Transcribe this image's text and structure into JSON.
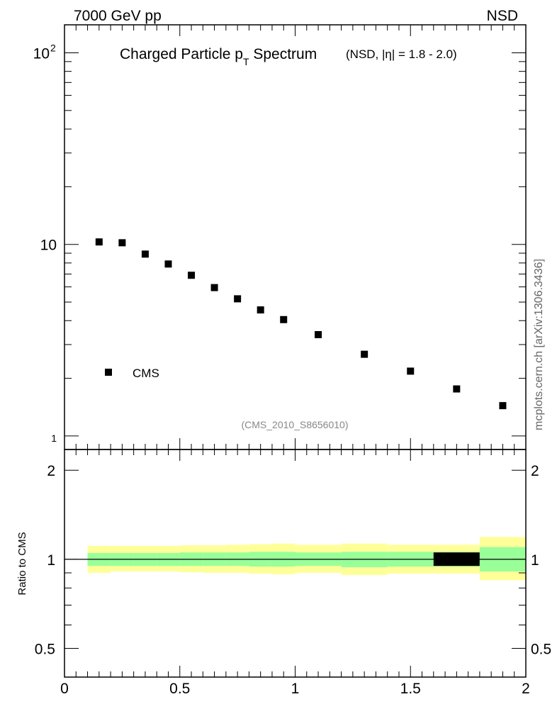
{
  "header": {
    "left": "7000 GeV pp",
    "right": "NSD"
  },
  "watermark": "mcplots.cern.ch [arXiv:1306.3436]",
  "analysis_id": "(CMS_2010_S8656010)",
  "chart_data": [
    {
      "type": "scatter",
      "title_main": "Charged Particle p",
      "title_sub": "T",
      "title_tail": " Spectrum",
      "title_detail": "(NSD, |η| = 1.8 - 2.0)",
      "xlim": [
        0,
        2
      ],
      "ylim": [
        0.85,
        140
      ],
      "yscale": "log",
      "y_ticks": [
        {
          "value": 1,
          "label": "1"
        },
        {
          "value": 10,
          "label": "10"
        },
        {
          "value": 100,
          "label": "10",
          "sup": "2"
        }
      ],
      "legend": {
        "label": "CMS",
        "position": "bottom-left"
      },
      "series": [
        {
          "name": "CMS",
          "marker": "square",
          "color": "#000000",
          "x": [
            0.15,
            0.25,
            0.35,
            0.45,
            0.55,
            0.65,
            0.75,
            0.85,
            0.95,
            1.1,
            1.3,
            1.5,
            1.7,
            1.9
          ],
          "y": [
            10.3,
            10.2,
            8.9,
            7.9,
            6.9,
            5.95,
            5.2,
            4.55,
            4.05,
            3.38,
            2.67,
            2.18,
            1.76,
            1.44
          ]
        }
      ]
    },
    {
      "type": "area",
      "ylabel": "Ratio to CMS",
      "xlim": [
        0,
        2
      ],
      "ylim": [
        0.4,
        2.35
      ],
      "yscale": "log",
      "x_ticks": [
        {
          "value": 0,
          "label": "0"
        },
        {
          "value": 0.5,
          "label": "0.5"
        },
        {
          "value": 1,
          "label": "1"
        },
        {
          "value": 1.5,
          "label": "1.5"
        },
        {
          "value": 2,
          "label": "2"
        }
      ],
      "y_ticks": [
        {
          "value": 0.5,
          "label": "0.5"
        },
        {
          "value": 1,
          "label": "1"
        },
        {
          "value": 2,
          "label": "2"
        }
      ],
      "bands": {
        "outer_color": "#ffff99",
        "inner_color": "#99ff99",
        "reference_color": "#000000",
        "bins": [
          {
            "x0": 0.1,
            "x1": 0.2,
            "inner": [
              0.95,
              1.05
            ],
            "outer": [
              0.9,
              1.11
            ]
          },
          {
            "x0": 0.2,
            "x1": 0.3,
            "inner": [
              0.95,
              1.05
            ],
            "outer": [
              0.91,
              1.11
            ]
          },
          {
            "x0": 0.3,
            "x1": 0.4,
            "inner": [
              0.95,
              1.05
            ],
            "outer": [
              0.91,
              1.11
            ]
          },
          {
            "x0": 0.4,
            "x1": 0.5,
            "inner": [
              0.95,
              1.05
            ],
            "outer": [
              0.91,
              1.11
            ]
          },
          {
            "x0": 0.5,
            "x1": 0.6,
            "inner": [
              0.95,
              1.055
            ],
            "outer": [
              0.905,
              1.115
            ]
          },
          {
            "x0": 0.6,
            "x1": 0.7,
            "inner": [
              0.95,
              1.055
            ],
            "outer": [
              0.9,
              1.115
            ]
          },
          {
            "x0": 0.7,
            "x1": 0.8,
            "inner": [
              0.95,
              1.055
            ],
            "outer": [
              0.9,
              1.12
            ]
          },
          {
            "x0": 0.8,
            "x1": 0.9,
            "inner": [
              0.945,
              1.06
            ],
            "outer": [
              0.895,
              1.125
            ]
          },
          {
            "x0": 0.9,
            "x1": 1.0,
            "inner": [
              0.945,
              1.06
            ],
            "outer": [
              0.89,
              1.13
            ]
          },
          {
            "x0": 1.0,
            "x1": 1.2,
            "inner": [
              0.95,
              1.055
            ],
            "outer": [
              0.9,
              1.12
            ]
          },
          {
            "x0": 1.2,
            "x1": 1.4,
            "inner": [
              0.94,
              1.06
            ],
            "outer": [
              0.885,
              1.13
            ]
          },
          {
            "x0": 1.4,
            "x1": 1.6,
            "inner": [
              0.945,
              1.06
            ],
            "outer": [
              0.895,
              1.12
            ]
          },
          {
            "x0": 1.6,
            "x1": 1.8,
            "inner": [
              0.945,
              1.06
            ],
            "outer": [
              0.895,
              1.12
            ],
            "reference": [
              0.95,
              1.055
            ]
          },
          {
            "x0": 1.8,
            "x1": 2.0,
            "inner": [
              0.91,
              1.1
            ],
            "outer": [
              0.85,
              1.19
            ]
          }
        ]
      }
    }
  ]
}
